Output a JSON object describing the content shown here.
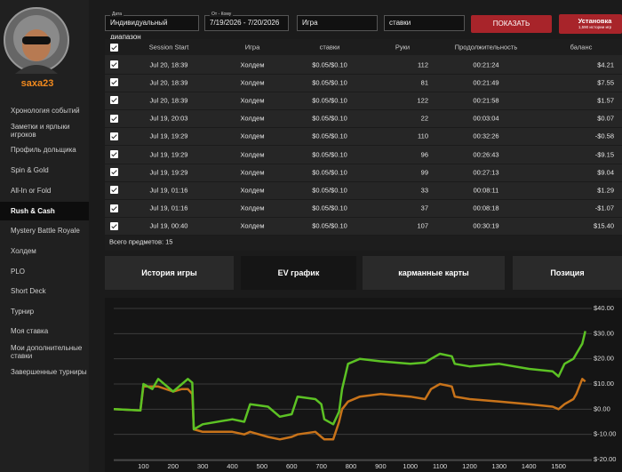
{
  "sidebar": {
    "username": "saxa23",
    "items": [
      "Хронология событий",
      "Заметки и ярлыки игроков",
      "Профиль дольщика",
      "Spin & Gold",
      "All-In or Fold",
      "Rush & Cash",
      "Mystery Battle Royale",
      "Холдем",
      "PLO",
      "Short Deck",
      "Турнир",
      "Моя ставка",
      "Мои дополнительные ставки",
      "Завершенные турниры"
    ]
  },
  "filters": {
    "date_label": "Дата",
    "date_range_type": "Индивидуальный диапазон",
    "range_label": "От - Кому",
    "range": "7/19/2026  -  7/20/2026",
    "game": "Игра",
    "stakes": "ставки",
    "show_button": "ПОКАЗАТЬ",
    "install_button": "Установка",
    "install_note": "1,590 истории игр"
  },
  "table": {
    "columns": [
      "Session Start",
      "Игра",
      "ставки",
      "Руки",
      "Продолжительность",
      "баланс"
    ],
    "rows": [
      [
        "Jul 20, 18:39",
        "Холдем",
        "$0.05/$0.10",
        "112",
        "00:21:24",
        "$4.21"
      ],
      [
        "Jul 20, 18:39",
        "Холдем",
        "$0.05/$0.10",
        "81",
        "00:21:49",
        "$7.55"
      ],
      [
        "Jul 20, 18:39",
        "Холдем",
        "$0.05/$0.10",
        "122",
        "00:21:58",
        "$1.57"
      ],
      [
        "Jul 19, 20:03",
        "Холдем",
        "$0.05/$0.10",
        "22",
        "00:03:04",
        "$0.07"
      ],
      [
        "Jul 19, 19:29",
        "Холдем",
        "$0.05/$0.10",
        "110",
        "00:32:26",
        "-$0.58"
      ],
      [
        "Jul 19, 19:29",
        "Холдем",
        "$0.05/$0.10",
        "96",
        "00:26:43",
        "-$9.15"
      ],
      [
        "Jul 19, 19:29",
        "Холдем",
        "$0.05/$0.10",
        "99",
        "00:27:13",
        "$9.04"
      ],
      [
        "Jul 19, 01:16",
        "Холдем",
        "$0.05/$0.10",
        "33",
        "00:08:11",
        "$1.29"
      ],
      [
        "Jul 19, 01:16",
        "Холдем",
        "$0.05/$0.10",
        "37",
        "00:08:18",
        "-$1.07"
      ],
      [
        "Jul 19, 00:40",
        "Холдем",
        "$0.05/$0.10",
        "107",
        "00:30:19",
        "$15.40"
      ]
    ],
    "footer": "Всего предметов: 15"
  },
  "tabs": [
    "История игры",
    "EV график",
    "карманные карты",
    "Позиция"
  ],
  "chart_data": {
    "type": "line",
    "x": [
      0,
      90,
      100,
      130,
      150,
      200,
      230,
      250,
      265,
      270,
      300,
      400,
      440,
      460,
      520,
      560,
      600,
      620,
      680,
      700,
      710,
      740,
      760,
      770,
      790,
      830,
      900,
      1000,
      1050,
      1070,
      1100,
      1140,
      1150,
      1200,
      1300,
      1400,
      1480,
      1500,
      1520,
      1550,
      1560,
      1580,
      1590
    ],
    "series": [
      {
        "color": "#5cc224",
        "values": [
          0,
          -0.5,
          10,
          8,
          12,
          7,
          10,
          12,
          10.5,
          -8,
          -6,
          -4,
          -5,
          2,
          1,
          -3,
          -2,
          5,
          4,
          2,
          -4,
          -6,
          -1,
          8,
          18,
          20,
          19,
          18,
          18.5,
          20,
          22,
          21,
          18,
          17,
          18,
          16,
          15,
          13,
          18,
          20,
          22,
          26,
          31
        ]
      },
      {
        "color": "#c8731a",
        "values": [
          0,
          -0.5,
          9,
          9,
          9,
          7,
          8,
          8,
          6,
          -8,
          -9,
          -9,
          -10,
          -9,
          -11,
          -12,
          -11,
          -10,
          -9,
          -11,
          -12,
          -12,
          -5,
          0,
          3,
          5,
          6,
          5,
          4,
          8,
          10,
          9,
          5,
          4,
          3,
          2,
          1,
          0,
          2,
          4,
          6,
          12,
          11
        ]
      }
    ],
    "xlim": [
      0,
      1600
    ],
    "ylim": [
      -20,
      40
    ],
    "xticks": [
      100,
      200,
      300,
      400,
      500,
      600,
      700,
      800,
      900,
      1000,
      1100,
      1200,
      1300,
      1400,
      1500
    ],
    "yticks": [
      {
        "value": 40,
        "label": "$40.00"
      },
      {
        "value": 30,
        "label": "$30.00"
      },
      {
        "value": 20,
        "label": "$20.00"
      },
      {
        "value": 10,
        "label": "$10.00"
      },
      {
        "value": 0,
        "label": "$0.00"
      },
      {
        "value": -10,
        "label": "$-10.00"
      },
      {
        "value": -20,
        "label": "$-20.00"
      }
    ],
    "grid": true
  }
}
